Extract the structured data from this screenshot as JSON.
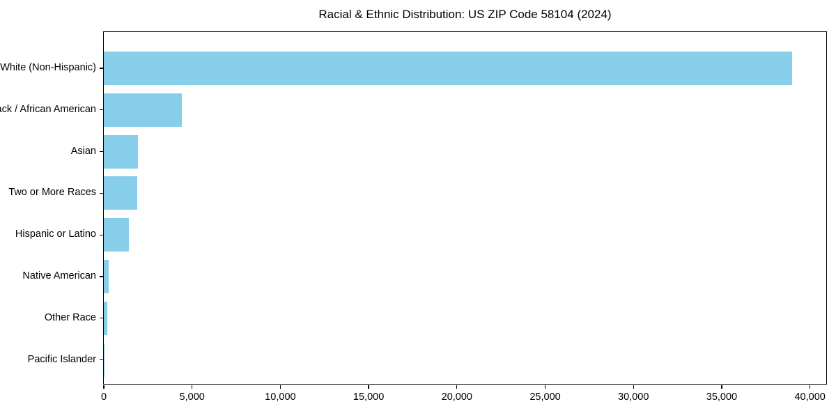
{
  "chart_data": {
    "type": "bar",
    "orientation": "horizontal",
    "title": "Racial & Ethnic Distribution: US ZIP Code 58104 (2024)",
    "categories": [
      "White (Non-Hispanic)",
      "Black / African American",
      "Asian",
      "Two or More Races",
      "Hispanic or Latino",
      "Native American",
      "Other Race",
      "Pacific Islander"
    ],
    "values": [
      39000,
      4400,
      1950,
      1900,
      1400,
      280,
      180,
      15
    ],
    "xlabel": "",
    "ylabel": "",
    "xlim": [
      0,
      41000
    ],
    "x_ticks": [
      0,
      5000,
      10000,
      15000,
      20000,
      25000,
      30000,
      35000,
      40000
    ],
    "x_tick_labels": [
      "0",
      "5,000",
      "10,000",
      "15,000",
      "20,000",
      "25,000",
      "30,000",
      "35,000",
      "40,000"
    ],
    "bar_color": "#87CEEB",
    "axis_color": "#000000",
    "text_color": "#000000",
    "background_color": "#ffffff",
    "grid": false,
    "legend": null
  }
}
